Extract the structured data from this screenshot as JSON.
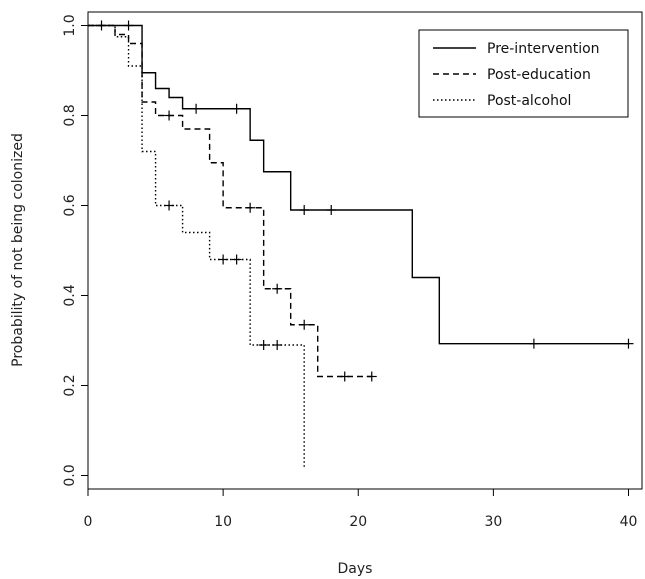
{
  "chart_data": {
    "type": "line",
    "title": "",
    "xlabel": "Days",
    "ylabel": "Probability of not being colonized",
    "xlim": [
      0,
      41
    ],
    "ylim": [
      -0.03,
      1.03
    ],
    "x_ticks": [
      0,
      10,
      20,
      30,
      40
    ],
    "y_ticks": [
      0.0,
      0.2,
      0.4,
      0.6,
      0.8,
      1.0
    ],
    "y_tick_labels": [
      "0.0",
      "0.2",
      "0.4",
      "0.6",
      "0.8",
      "1.0"
    ],
    "legend_position": "top-right",
    "grid": false,
    "series": [
      {
        "name": "Pre-intervention",
        "style": "solid",
        "color": "#000000",
        "steps": [
          [
            0,
            1.0
          ],
          [
            4,
            0.895
          ],
          [
            5,
            0.86
          ],
          [
            6,
            0.84
          ],
          [
            7,
            0.815
          ],
          [
            12,
            0.745
          ],
          [
            13,
            0.675
          ],
          [
            15,
            0.59
          ],
          [
            24,
            0.44
          ],
          [
            26,
            0.293
          ],
          [
            40,
            0.293
          ]
        ],
        "censored": [
          [
            1,
            1.0
          ],
          [
            3,
            1.0
          ],
          [
            8,
            0.815
          ],
          [
            11,
            0.815
          ],
          [
            16,
            0.59
          ],
          [
            18,
            0.59
          ],
          [
            33,
            0.293
          ],
          [
            40,
            0.293
          ]
        ]
      },
      {
        "name": "Post-education",
        "style": "dashed",
        "color": "#000000",
        "steps": [
          [
            0,
            1.0
          ],
          [
            2,
            0.98
          ],
          [
            3,
            0.96
          ],
          [
            4,
            0.83
          ],
          [
            5,
            0.8
          ],
          [
            7,
            0.77
          ],
          [
            9,
            0.695
          ],
          [
            10,
            0.595
          ],
          [
            13,
            0.415
          ],
          [
            15,
            0.335
          ],
          [
            17,
            0.22
          ],
          [
            21,
            0.22
          ]
        ],
        "censored": [
          [
            6,
            0.8
          ],
          [
            12,
            0.595
          ],
          [
            14,
            0.415
          ],
          [
            16,
            0.335
          ],
          [
            19,
            0.22
          ],
          [
            21,
            0.22
          ]
        ]
      },
      {
        "name": "Post-alcohol",
        "style": "dotted",
        "color": "#000000",
        "steps": [
          [
            0,
            1.0
          ],
          [
            2,
            0.975
          ],
          [
            3,
            0.91
          ],
          [
            4,
            0.72
          ],
          [
            5,
            0.6
          ],
          [
            7,
            0.54
          ],
          [
            9,
            0.48
          ],
          [
            12,
            0.29
          ],
          [
            16,
            0.015
          ]
        ],
        "censored": [
          [
            6,
            0.6
          ],
          [
            10,
            0.48
          ],
          [
            11,
            0.48
          ],
          [
            13,
            0.29
          ],
          [
            14,
            0.29
          ]
        ]
      }
    ]
  }
}
